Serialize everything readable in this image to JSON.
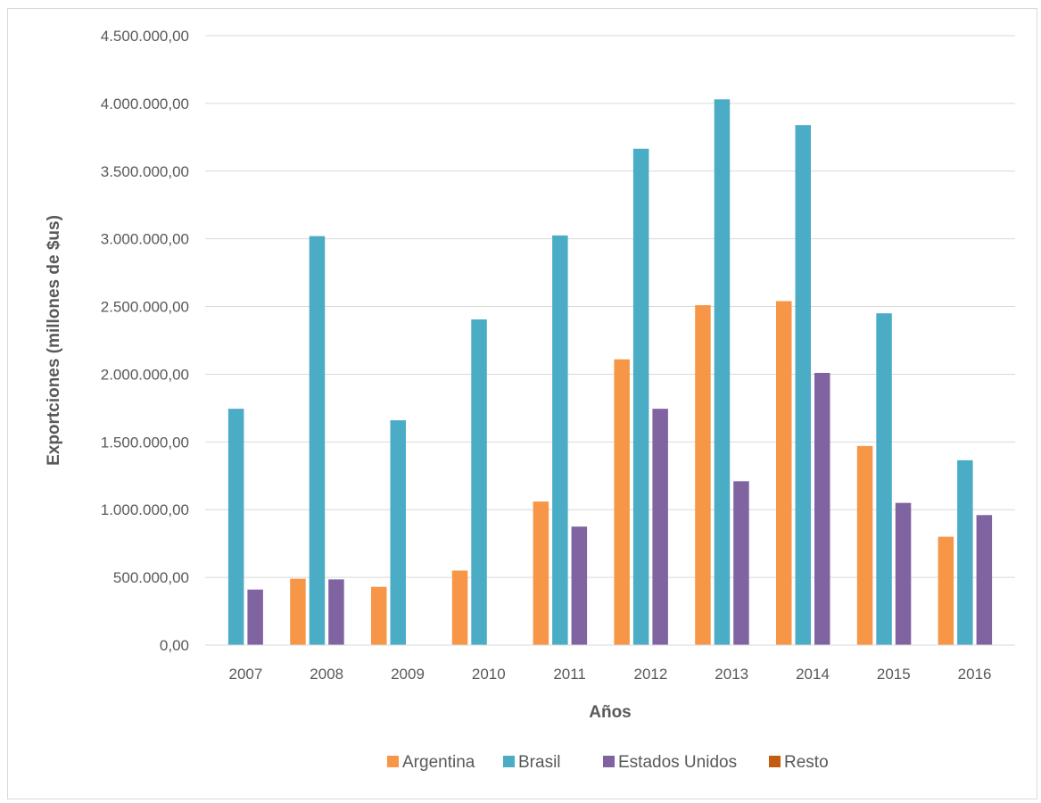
{
  "chart_data": {
    "type": "bar",
    "title": "",
    "xlabel": "Años",
    "ylabel": "Exportciones (millones de $us)",
    "ylim": [
      0,
      4500000
    ],
    "yticks": [
      "0,00",
      "500.000,00",
      "1.000.000,00",
      "1.500.000,00",
      "2.000.000,00",
      "2.500.000,00",
      "3.000.000,00",
      "3.500.000,00",
      "4.000.000,00",
      "4.500.000,00"
    ],
    "grid": true,
    "legend_position": "bottom",
    "categories": [
      "2007",
      "2008",
      "2009",
      "2010",
      "2011",
      "2012",
      "2013",
      "2014",
      "2015",
      "2016"
    ],
    "series": [
      {
        "name": "Argentina",
        "color": "#f79646",
        "values": [
          0,
          490000,
          430000,
          550000,
          1060000,
          2110000,
          2510000,
          2540000,
          1470000,
          800000
        ]
      },
      {
        "name": "Brasil",
        "color": "#4bacc6",
        "values": [
          1745000,
          3020000,
          1660000,
          2405000,
          3025000,
          3665000,
          4030000,
          3840000,
          2450000,
          1365000
        ]
      },
      {
        "name": "Estados Unidos",
        "color": "#8064a2",
        "values": [
          410000,
          485000,
          0,
          0,
          875000,
          1745000,
          1210000,
          2010000,
          1050000,
          960000
        ]
      },
      {
        "name": "Resto",
        "color": "#c55a11",
        "values": [
          0,
          0,
          0,
          0,
          0,
          0,
          0,
          0,
          0,
          0
        ]
      }
    ]
  }
}
